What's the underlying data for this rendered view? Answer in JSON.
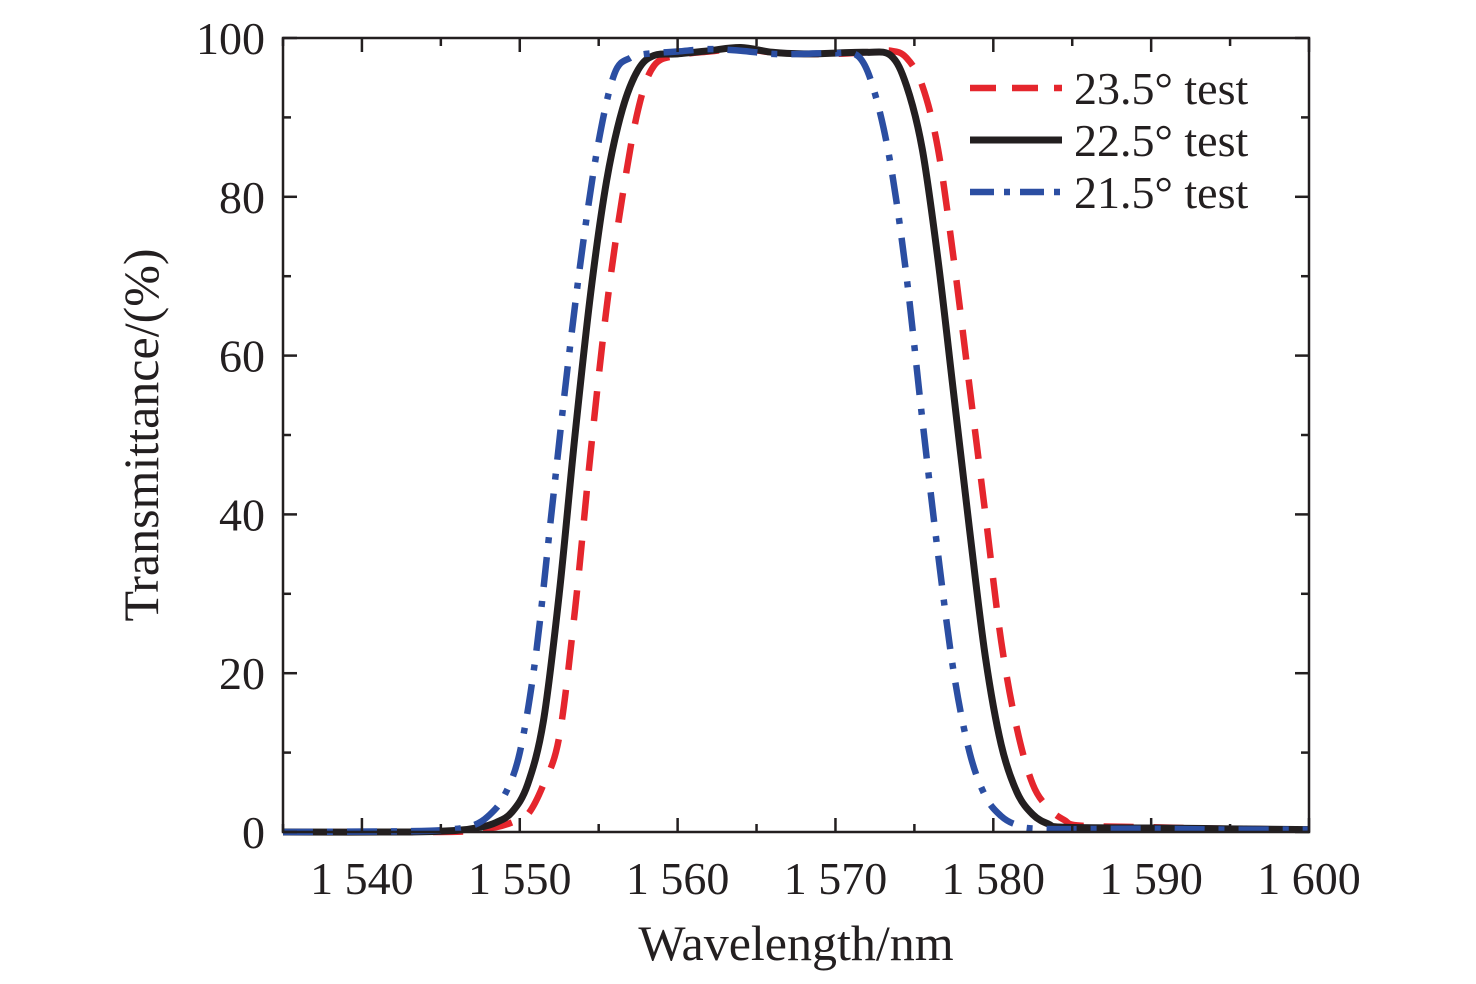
{
  "chart_data": {
    "type": "line",
    "title": "",
    "xlabel": "Wavelength/nm",
    "ylabel": "Transmittance/(%)",
    "xlim": [
      1535,
      1600
    ],
    "ylim": [
      0,
      100
    ],
    "x_ticks": [
      1540,
      1550,
      1560,
      1570,
      1580,
      1590,
      1600
    ],
    "x_tick_labels": [
      "1 540",
      "1 550",
      "1 560",
      "1 570",
      "1 580",
      "1 590",
      "1 600"
    ],
    "y_ticks": [
      0,
      20,
      40,
      60,
      80,
      100
    ],
    "y_tick_labels": [
      "0",
      "20",
      "40",
      "60",
      "80",
      "100"
    ],
    "grid": false,
    "legend_position": "top-right",
    "series": [
      {
        "name": "23.5° test",
        "color": "#e5262d",
        "style": "dashed",
        "points": [
          [
            1535,
            0
          ],
          [
            1545,
            0
          ],
          [
            1547,
            0.2
          ],
          [
            1548.5,
            0.6
          ],
          [
            1549.5,
            1.2
          ],
          [
            1550.5,
            2.2
          ],
          [
            1551.5,
            6
          ],
          [
            1552.5,
            12
          ],
          [
            1553.5,
            28
          ],
          [
            1554.5,
            48
          ],
          [
            1555.5,
            66
          ],
          [
            1556.5,
            80
          ],
          [
            1557.5,
            91
          ],
          [
            1558.5,
            96.5
          ],
          [
            1560,
            97.8
          ],
          [
            1562,
            98.3
          ],
          [
            1564,
            98.6
          ],
          [
            1566,
            98.2
          ],
          [
            1568,
            98
          ],
          [
            1570,
            98
          ],
          [
            1572,
            98.2
          ],
          [
            1573.5,
            98.4
          ],
          [
            1574.5,
            97.5
          ],
          [
            1575.5,
            94
          ],
          [
            1576.5,
            86
          ],
          [
            1577.5,
            72
          ],
          [
            1578.5,
            56
          ],
          [
            1579.5,
            40
          ],
          [
            1580.5,
            24
          ],
          [
            1581.5,
            13
          ],
          [
            1582.5,
            6
          ],
          [
            1583.5,
            3
          ],
          [
            1584.5,
            1.5
          ],
          [
            1585.5,
            0.8
          ],
          [
            1590,
            0.6
          ],
          [
            1595,
            0.4
          ],
          [
            1600,
            0.3
          ]
        ]
      },
      {
        "name": "22.5° test",
        "color": "#231f20",
        "style": "solid",
        "points": [
          [
            1535,
            0
          ],
          [
            1543,
            0
          ],
          [
            1546,
            0.2
          ],
          [
            1547.5,
            0.6
          ],
          [
            1548.5,
            1.2
          ],
          [
            1549.5,
            2.5
          ],
          [
            1550.5,
            6
          ],
          [
            1551.5,
            14
          ],
          [
            1552.5,
            30
          ],
          [
            1553.5,
            50
          ],
          [
            1554.5,
            68
          ],
          [
            1555.5,
            82
          ],
          [
            1556.5,
            91
          ],
          [
            1557.5,
            96
          ],
          [
            1558.5,
            97.8
          ],
          [
            1560,
            98
          ],
          [
            1562,
            98.4
          ],
          [
            1564,
            98.8
          ],
          [
            1566,
            98.2
          ],
          [
            1568,
            98
          ],
          [
            1570,
            98.1
          ],
          [
            1572,
            98.2
          ],
          [
            1573.5,
            97.8
          ],
          [
            1574.5,
            94
          ],
          [
            1575.5,
            86
          ],
          [
            1576.5,
            72
          ],
          [
            1577.5,
            55
          ],
          [
            1578.5,
            38
          ],
          [
            1579.5,
            22
          ],
          [
            1580.5,
            11
          ],
          [
            1581.5,
            5
          ],
          [
            1582.5,
            2.2
          ],
          [
            1583.5,
            1
          ],
          [
            1584.5,
            0.6
          ],
          [
            1590,
            0.5
          ],
          [
            1595,
            0.4
          ],
          [
            1600,
            0.3
          ]
        ]
      },
      {
        "name": "21.5° test",
        "color": "#2b4ea2",
        "style": "dash-dot",
        "points": [
          [
            1535,
            0
          ],
          [
            1543,
            0.1
          ],
          [
            1545.5,
            0.3
          ],
          [
            1547,
            0.8
          ],
          [
            1548,
            2
          ],
          [
            1549,
            4.5
          ],
          [
            1550,
            10
          ],
          [
            1551,
            22
          ],
          [
            1552,
            40
          ],
          [
            1553,
            58
          ],
          [
            1554,
            74
          ],
          [
            1555,
            87
          ],
          [
            1556,
            95.5
          ],
          [
            1557,
            97.5
          ],
          [
            1558,
            98
          ],
          [
            1560,
            98.3
          ],
          [
            1562,
            98.6
          ],
          [
            1564,
            98.4
          ],
          [
            1566,
            98
          ],
          [
            1568,
            98
          ],
          [
            1570,
            98.1
          ],
          [
            1571.5,
            97.6
          ],
          [
            1572.5,
            93
          ],
          [
            1573.5,
            84
          ],
          [
            1574.5,
            70
          ],
          [
            1575.5,
            52
          ],
          [
            1576.5,
            35
          ],
          [
            1577.5,
            20
          ],
          [
            1578.5,
            10
          ],
          [
            1579.5,
            4.5
          ],
          [
            1580.5,
            2
          ],
          [
            1581.5,
            0.9
          ],
          [
            1583,
            0.4
          ],
          [
            1590,
            0.4
          ],
          [
            1595,
            0.3
          ],
          [
            1600,
            0.3
          ]
        ]
      }
    ]
  }
}
